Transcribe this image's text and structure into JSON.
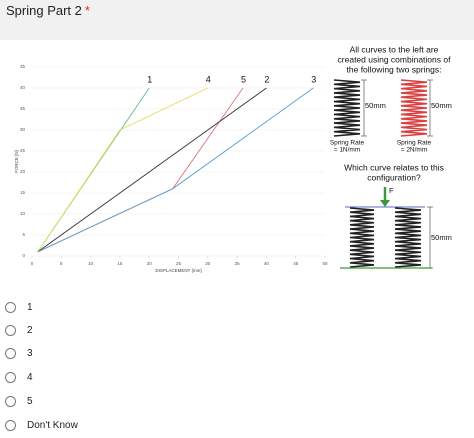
{
  "question": {
    "title": "Spring Part 2",
    "required_mark": "*"
  },
  "chart_data": {
    "type": "line",
    "x_label": "DISPLACEMENT [mm]",
    "y_label": "FORCE [N]",
    "xlim": [
      0,
      50
    ],
    "xticks": [
      0,
      5,
      10,
      15,
      20,
      25,
      30,
      35,
      40,
      45,
      50
    ],
    "ylim": [
      0,
      45
    ],
    "yticks": [
      0,
      5,
      10,
      15,
      20,
      25,
      30,
      35,
      40,
      45
    ],
    "series": [
      {
        "name": "1",
        "color": "#5ec47a",
        "x": [
          1,
          20
        ],
        "values": [
          1,
          40
        ]
      },
      {
        "name": "4",
        "color": "#e3dc5a",
        "x": [
          1,
          15,
          30
        ],
        "values": [
          1,
          30,
          40
        ]
      },
      {
        "name": "5",
        "color": "#e0737a",
        "x": [
          1,
          24,
          36
        ],
        "values": [
          1,
          16,
          40
        ]
      },
      {
        "name": "2",
        "color": "#333333",
        "x": [
          1,
          40
        ],
        "values": [
          1,
          40
        ]
      },
      {
        "name": "3",
        "color": "#5b9fd0",
        "x": [
          1,
          24,
          48
        ],
        "values": [
          1,
          16,
          40
        ]
      }
    ]
  },
  "diagram": {
    "intro": [
      "All curves to the left are",
      "created using combinations of",
      "the following two springs:"
    ],
    "spring_a": {
      "length": "50mm",
      "rate": [
        "Spring Rate",
        "= 1N/mm"
      ]
    },
    "spring_b": {
      "length": "50mm",
      "rate": [
        "Spring Rate",
        "= 2N/mm"
      ]
    },
    "prompt": [
      "Which curve relates to this",
      "configuration?"
    ],
    "force": "F",
    "config_length": "50mm"
  },
  "options": [
    "1",
    "2",
    "3",
    "4",
    "5",
    "Don't Know"
  ]
}
